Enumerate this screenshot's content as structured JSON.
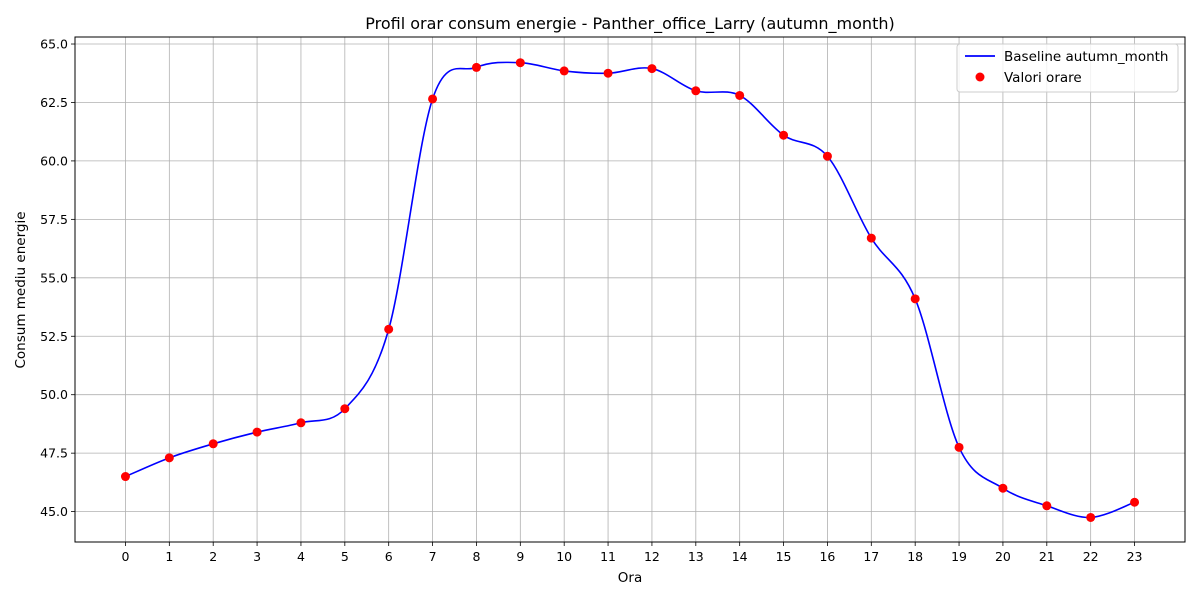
{
  "chart_data": {
    "type": "line",
    "title": "Profil orar consum energie - Panther_office_Larry (autumn_month)",
    "xlabel": "Ora",
    "ylabel": "Consum mediu energie",
    "x": [
      0,
      1,
      2,
      3,
      4,
      5,
      6,
      7,
      8,
      9,
      10,
      11,
      12,
      13,
      14,
      15,
      16,
      17,
      18,
      19,
      20,
      21,
      22,
      23
    ],
    "x_ticks": [
      "0",
      "1",
      "2",
      "3",
      "4",
      "5",
      "6",
      "7",
      "8",
      "9",
      "10",
      "11",
      "12",
      "13",
      "14",
      "15",
      "16",
      "17",
      "18",
      "19",
      "20",
      "21",
      "22",
      "23"
    ],
    "y_ticks": [
      "45.0",
      "47.5",
      "50.0",
      "52.5",
      "55.0",
      "57.5",
      "60.0",
      "62.5",
      "65.0"
    ],
    "ylim": [
      43.7,
      65.3
    ],
    "xlim": [
      -1.15,
      24.15
    ],
    "grid": true,
    "legend_position": "top-right",
    "series": [
      {
        "name": "Baseline autumn_month",
        "kind": "smooth-line",
        "color": "#0000ff",
        "values": [
          46.5,
          47.3,
          47.9,
          48.4,
          48.8,
          49.4,
          52.8,
          62.65,
          64.0,
          64.2,
          63.85,
          63.75,
          63.95,
          63.0,
          62.8,
          61.1,
          60.2,
          56.7,
          54.1,
          47.75,
          46.0,
          45.25,
          44.75,
          45.4
        ]
      },
      {
        "name": "Valori orare",
        "kind": "scatter",
        "color": "#ff0000",
        "values": [
          46.5,
          47.3,
          47.9,
          48.4,
          48.8,
          49.4,
          52.8,
          62.65,
          64.0,
          64.2,
          63.85,
          63.75,
          63.95,
          63.0,
          62.8,
          61.1,
          60.2,
          56.7,
          54.1,
          47.75,
          46.0,
          45.25,
          44.75,
          45.4
        ]
      }
    ]
  }
}
